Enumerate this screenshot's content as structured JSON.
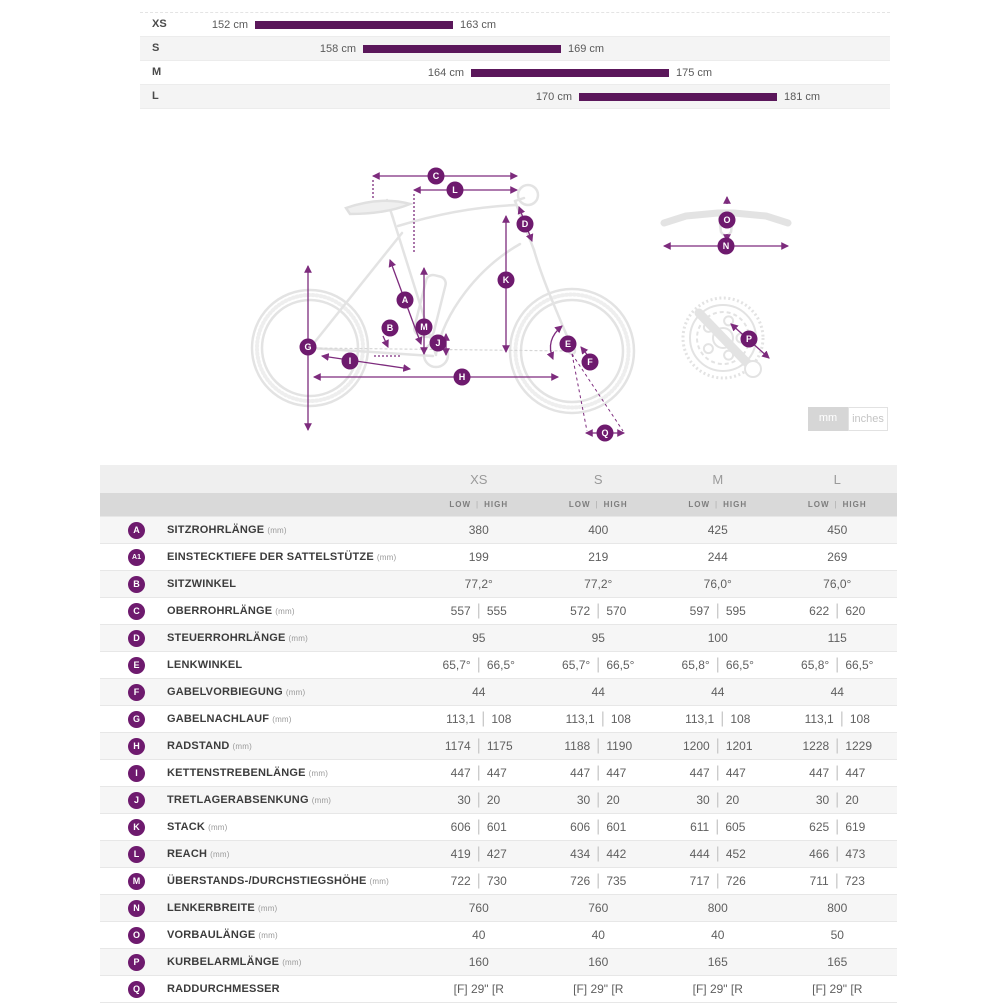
{
  "chart_data": {
    "type": "bar",
    "subtype": "horizontal-range",
    "title": "Rider height range per frame size",
    "categories": [
      "XS",
      "S",
      "M",
      "L"
    ],
    "series": [
      {
        "name": "min_height_cm",
        "values": [
          152,
          158,
          164,
          170
        ]
      },
      {
        "name": "max_height_cm",
        "values": [
          163,
          169,
          175,
          181
        ]
      }
    ],
    "labels": {
      "min": [
        "152 cm",
        "158 cm",
        "164 cm",
        "170 cm"
      ],
      "max": [
        "163 cm",
        "169 cm",
        "175 cm",
        "181 cm"
      ]
    },
    "unit": "cm",
    "xlim": [
      152,
      181
    ],
    "bar_color": "#5b175b"
  },
  "units_toggle": {
    "mm_label": "mm",
    "inches_label": "inches",
    "selected": "mm"
  },
  "diagram": {
    "letters": {
      "a": "A",
      "b": "B",
      "c": "C",
      "d": "D",
      "e": "E",
      "f": "F",
      "g": "G",
      "h": "H",
      "i": "I",
      "j": "J",
      "k": "K",
      "l": "L",
      "m": "M",
      "n": "N",
      "o": "O",
      "p": "P",
      "q": "Q"
    }
  },
  "table": {
    "col_headers": [
      "XS",
      "S",
      "M",
      "L"
    ],
    "sub_headers": {
      "low": "LOW",
      "high": "HIGH"
    },
    "sub_separator": "|",
    "rows": [
      {
        "letter": "A",
        "label": "SITZROHRLÄNGE",
        "unit": "(mm)",
        "values": [
          [
            "380"
          ],
          [
            "400"
          ],
          [
            "425"
          ],
          [
            "450"
          ]
        ]
      },
      {
        "letter": "A1",
        "label": "EINSTECKTIEFE DER SATTELSTÜTZE",
        "unit": "(mm)",
        "values": [
          [
            "199"
          ],
          [
            "219"
          ],
          [
            "244"
          ],
          [
            "269"
          ]
        ]
      },
      {
        "letter": "B",
        "label": "SITZWINKEL",
        "unit": "",
        "values": [
          [
            "77,2°"
          ],
          [
            "77,2°"
          ],
          [
            "76,0°"
          ],
          [
            "76,0°"
          ]
        ]
      },
      {
        "letter": "C",
        "label": "OBERROHRLÄNGE",
        "unit": "(mm)",
        "values": [
          [
            "557",
            "555"
          ],
          [
            "572",
            "570"
          ],
          [
            "597",
            "595"
          ],
          [
            "622",
            "620"
          ]
        ]
      },
      {
        "letter": "D",
        "label": "STEUERROHRLÄNGE",
        "unit": "(mm)",
        "values": [
          [
            "95"
          ],
          [
            "95"
          ],
          [
            "100"
          ],
          [
            "115"
          ]
        ]
      },
      {
        "letter": "E",
        "label": "LENKWINKEL",
        "unit": "",
        "values": [
          [
            "65,7°",
            "66,5°"
          ],
          [
            "65,7°",
            "66,5°"
          ],
          [
            "65,8°",
            "66,5°"
          ],
          [
            "65,8°",
            "66,5°"
          ]
        ]
      },
      {
        "letter": "F",
        "label": "GABELVORBIEGUNG",
        "unit": "(mm)",
        "values": [
          [
            "44"
          ],
          [
            "44"
          ],
          [
            "44"
          ],
          [
            "44"
          ]
        ]
      },
      {
        "letter": "G",
        "label": "GABELNACHLAUF",
        "unit": "(mm)",
        "values": [
          [
            "113,1",
            "108"
          ],
          [
            "113,1",
            "108"
          ],
          [
            "113,1",
            "108"
          ],
          [
            "113,1",
            "108"
          ]
        ]
      },
      {
        "letter": "H",
        "label": "RADSTAND",
        "unit": "(mm)",
        "values": [
          [
            "1174",
            "1175"
          ],
          [
            "1188",
            "1190"
          ],
          [
            "1200",
            "1201"
          ],
          [
            "1228",
            "1229"
          ]
        ]
      },
      {
        "letter": "I",
        "label": "KETTENSTREBENLÄNGE",
        "unit": "(mm)",
        "values": [
          [
            "447",
            "447"
          ],
          [
            "447",
            "447"
          ],
          [
            "447",
            "447"
          ],
          [
            "447",
            "447"
          ]
        ]
      },
      {
        "letter": "J",
        "label": "TRETLAGERABSENKUNG",
        "unit": "(mm)",
        "values": [
          [
            "30",
            "20"
          ],
          [
            "30",
            "20"
          ],
          [
            "30",
            "20"
          ],
          [
            "30",
            "20"
          ]
        ]
      },
      {
        "letter": "K",
        "label": "STACK",
        "unit": "(mm)",
        "values": [
          [
            "606",
            "601"
          ],
          [
            "606",
            "601"
          ],
          [
            "611",
            "605"
          ],
          [
            "625",
            "619"
          ]
        ]
      },
      {
        "letter": "L",
        "label": "REACH",
        "unit": "(mm)",
        "values": [
          [
            "419",
            "427"
          ],
          [
            "434",
            "442"
          ],
          [
            "444",
            "452"
          ],
          [
            "466",
            "473"
          ]
        ]
      },
      {
        "letter": "M",
        "label": "ÜBERSTANDS-/DURCHSTIEGSHÖHE",
        "unit": "(mm)",
        "values": [
          [
            "722",
            "730"
          ],
          [
            "726",
            "735"
          ],
          [
            "717",
            "726"
          ],
          [
            "711",
            "723"
          ]
        ]
      },
      {
        "letter": "N",
        "label": "LENKERBREITE",
        "unit": "(mm)",
        "values": [
          [
            "760"
          ],
          [
            "760"
          ],
          [
            "800"
          ],
          [
            "800"
          ]
        ]
      },
      {
        "letter": "O",
        "label": "VORBAULÄNGE",
        "unit": "(mm)",
        "values": [
          [
            "40"
          ],
          [
            "40"
          ],
          [
            "40"
          ],
          [
            "50"
          ]
        ]
      },
      {
        "letter": "P",
        "label": "KURBELARMLÄNGE",
        "unit": "(mm)",
        "values": [
          [
            "160"
          ],
          [
            "160"
          ],
          [
            "165"
          ],
          [
            "165"
          ]
        ]
      },
      {
        "letter": "Q",
        "label": "RADDURCHMESSER",
        "unit": "",
        "values": [
          [
            "[F] 29\" [R"
          ],
          [
            "[F] 29\" [R"
          ],
          [
            "[F] 29\" [R"
          ],
          [
            "[F] 29\" [R"
          ]
        ]
      }
    ]
  },
  "colors": {
    "accent_purple": "#6e1a6e",
    "dimension_line_purple": "#7d2b7d",
    "bar_purple": "#5b175b",
    "bike_outline_gray": "#e3e3e3",
    "header1_bg": "#efefef",
    "header2_bg": "#d9d9d9"
  }
}
